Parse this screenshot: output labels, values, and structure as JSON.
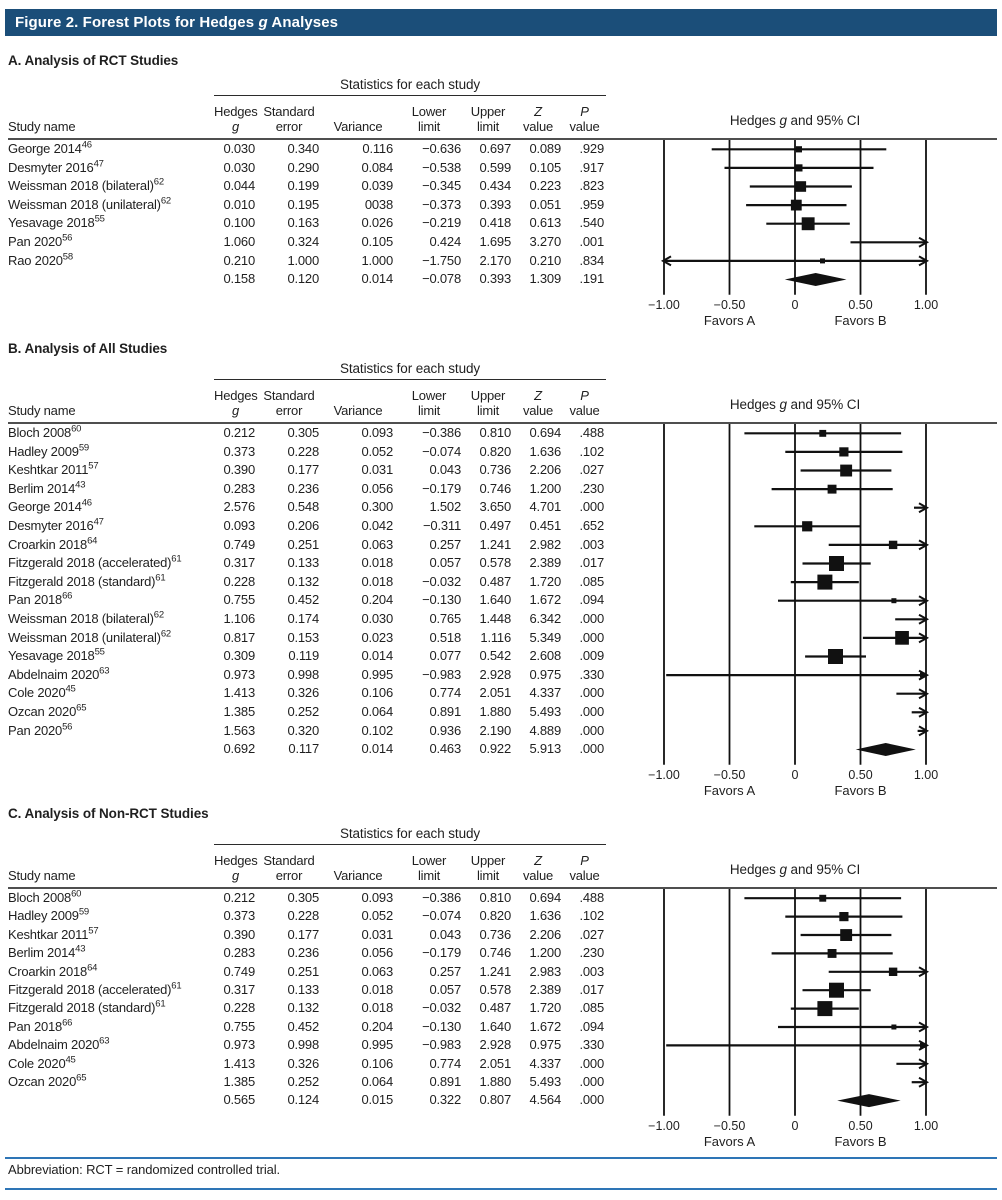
{
  "title_bar": {
    "prefix": "Figure 2. Forest Plots for Hedges ",
    "italic": "g",
    "suffix": " Analyses"
  },
  "colors": {
    "title_bar_bg": "#1b4e79",
    "rule_blue": "#2e75b6",
    "header_rule": "#4f4f4f",
    "ink": "#111111"
  },
  "table_labels": {
    "stats_header": "Statistics for each study",
    "study_col": "Study name"
  },
  "columns": [
    {
      "line1": "Hedges",
      "line2": "g",
      "italic_line": 2
    },
    {
      "line1": "Standard",
      "line2": "error",
      "italic_line": 0
    },
    {
      "line1": "",
      "line2": "Variance",
      "italic_line": 0
    },
    {
      "line1": "Lower",
      "line2": "limit",
      "italic_line": 0
    },
    {
      "line1": "Upper",
      "line2": "limit",
      "italic_line": 0
    },
    {
      "line1": "Z",
      "line2": "value",
      "italic_line": 1
    },
    {
      "line1": "P",
      "line2": "value",
      "italic_line": 1
    }
  ],
  "columns_order": [
    "hedges_g",
    "standard_error",
    "variance",
    "lower_limit",
    "upper_limit",
    "z_value",
    "p_value"
  ],
  "plot_labels": {
    "title_prefix": "Hedges ",
    "title_italic": "g",
    "title_suffix": " and 95% CI",
    "favors_left": "Favors A",
    "favors_right": "Favors B",
    "ticks": [
      {
        "label": "−1.00",
        "value": -1
      },
      {
        "label": "−0.50",
        "value": -0.5
      },
      {
        "label": "0",
        "value": 0
      },
      {
        "label": "0.50",
        "value": 0.5
      },
      {
        "label": "1.00",
        "value": 1
      }
    ]
  },
  "footer": {
    "abbreviation": "Abbreviation: RCT = randomized controlled trial."
  },
  "chart_data": [
    {
      "type": "forest",
      "panel_label": "A. Analysis of RCT Studies",
      "xlim": [
        -1,
        1
      ],
      "studies": [
        {
          "name": "George 2014",
          "ref": "46",
          "cols": [
            "0.030",
            "0.340",
            "0.116",
            "−0.636",
            "0.697",
            "0.089",
            ".929"
          ]
        },
        {
          "name": "Desmyter 2016",
          "ref": "47",
          "cols": [
            "0.030",
            "0.290",
            "0.084",
            "−0.538",
            "0.599",
            "0.105",
            ".917"
          ]
        },
        {
          "name": "Weissman 2018 (bilateral)",
          "ref": "62",
          "cols": [
            "0.044",
            "0.199",
            "0.039",
            "−0.345",
            "0.434",
            "0.223",
            ".823"
          ]
        },
        {
          "name": "Weissman 2018 (unilateral)",
          "ref": "62",
          "cols": [
            "0.010",
            "0.195",
            "0038",
            "−0.373",
            "0.393",
            "0.051",
            ".959"
          ]
        },
        {
          "name": "Yesavage 2018",
          "ref": "55",
          "cols": [
            "0.100",
            "0.163",
            "0.026",
            "−0.219",
            "0.418",
            "0.613",
            ".540"
          ]
        },
        {
          "name": "Pan 2020",
          "ref": "56",
          "cols": [
            "1.060",
            "0.324",
            "0.105",
            "0.424",
            "1.695",
            "3.270",
            ".001"
          ]
        },
        {
          "name": "Rao 2020",
          "ref": "58",
          "cols": [
            "0.210",
            "1.000",
            "1.000",
            "−1.750",
            "2.170",
            "0.210",
            ".834"
          ]
        }
      ],
      "summary": {
        "cols": [
          "0.158",
          "0.120",
          "0.014",
          "−0.078",
          "0.393",
          "1.309",
          ".191"
        ]
      }
    },
    {
      "type": "forest",
      "panel_label": "B. Analysis of All Studies",
      "xlim": [
        -1,
        1
      ],
      "studies": [
        {
          "name": "Bloch 2008",
          "ref": "60",
          "cols": [
            "0.212",
            "0.305",
            "0.093",
            "−0.386",
            "0.810",
            "0.694",
            ".488"
          ]
        },
        {
          "name": "Hadley 2009",
          "ref": "59",
          "cols": [
            "0.373",
            "0.228",
            "0.052",
            "−0.074",
            "0.820",
            "1.636",
            ".102"
          ]
        },
        {
          "name": "Keshtkar 2011",
          "ref": "57",
          "cols": [
            "0.390",
            "0.177",
            "0.031",
            "0.043",
            "0.736",
            "2.206",
            ".027"
          ]
        },
        {
          "name": "Berlim 2014",
          "ref": "43",
          "cols": [
            "0.283",
            "0.236",
            "0.056",
            "−0.179",
            "0.746",
            "1.200",
            ".230"
          ]
        },
        {
          "name": "George 2014",
          "ref": "46",
          "cols": [
            "2.576",
            "0.548",
            "0.300",
            "1.502",
            "3.650",
            "4.701",
            ".000"
          ]
        },
        {
          "name": "Desmyter 2016",
          "ref": "47",
          "cols": [
            "0.093",
            "0.206",
            "0.042",
            "−0.311",
            "0.497",
            "0.451",
            ".652"
          ]
        },
        {
          "name": "Croarkin 2018",
          "ref": "64",
          "cols": [
            "0.749",
            "0.251",
            "0.063",
            "0.257",
            "1.241",
            "2.982",
            ".003"
          ]
        },
        {
          "name": "Fitzgerald 2018 (accelerated)",
          "ref": "61",
          "cols": [
            "0.317",
            "0.133",
            "0.018",
            "0.057",
            "0.578",
            "2.389",
            ".017"
          ]
        },
        {
          "name": "Fitzgerald 2018 (standard)",
          "ref": "61",
          "cols": [
            "0.228",
            "0.132",
            "0.018",
            "−0.032",
            "0.487",
            "1.720",
            ".085"
          ]
        },
        {
          "name": "Pan 2018",
          "ref": "66",
          "cols": [
            "0.755",
            "0.452",
            "0.204",
            "−0.130",
            "1.640",
            "1.672",
            ".094"
          ]
        },
        {
          "name": "Weissman 2018 (bilateral)",
          "ref": "62",
          "cols": [
            "1.106",
            "0.174",
            "0.030",
            "0.765",
            "1.448",
            "6.342",
            ".000"
          ]
        },
        {
          "name": "Weissman 2018 (unilateral)",
          "ref": "62",
          "cols": [
            "0.817",
            "0.153",
            "0.023",
            "0.518",
            "1.116",
            "5.349",
            ".000"
          ]
        },
        {
          "name": "Yesavage 2018",
          "ref": "55",
          "cols": [
            "0.309",
            "0.119",
            "0.014",
            "0.077",
            "0.542",
            "2.608",
            ".009"
          ]
        },
        {
          "name": "Abdelnaim 2020",
          "ref": "63",
          "cols": [
            "0.973",
            "0.998",
            "0.995",
            "−0.983",
            "2.928",
            "0.975",
            ".330"
          ]
        },
        {
          "name": "Cole 2020",
          "ref": "45",
          "cols": [
            "1.413",
            "0.326",
            "0.106",
            "0.774",
            "2.051",
            "4.337",
            ".000"
          ]
        },
        {
          "name": "Ozcan 2020",
          "ref": "65",
          "cols": [
            "1.385",
            "0.252",
            "0.064",
            "0.891",
            "1.880",
            "5.493",
            ".000"
          ]
        },
        {
          "name": "Pan 2020",
          "ref": "56",
          "cols": [
            "1.563",
            "0.320",
            "0.102",
            "0.936",
            "2.190",
            "4.889",
            ".000"
          ]
        }
      ],
      "summary": {
        "cols": [
          "0.692",
          "0.117",
          "0.014",
          "0.463",
          "0.922",
          "5.913",
          ".000"
        ]
      }
    },
    {
      "type": "forest",
      "panel_label": "C. Analysis of Non-RCT Studies",
      "xlim": [
        -1,
        1
      ],
      "studies": [
        {
          "name": "Bloch 2008",
          "ref": "60",
          "cols": [
            "0.212",
            "0.305",
            "0.093",
            "−0.386",
            "0.810",
            "0.694",
            ".488"
          ]
        },
        {
          "name": "Hadley 2009",
          "ref": "59",
          "cols": [
            "0.373",
            "0.228",
            "0.052",
            "−0.074",
            "0.820",
            "1.636",
            ".102"
          ]
        },
        {
          "name": "Keshtkar 2011",
          "ref": "57",
          "cols": [
            "0.390",
            "0.177",
            "0.031",
            "0.043",
            "0.736",
            "2.206",
            ".027"
          ]
        },
        {
          "name": "Berlim 2014",
          "ref": "43",
          "cols": [
            "0.283",
            "0.236",
            "0.056",
            "−0.179",
            "0.746",
            "1.200",
            ".230"
          ]
        },
        {
          "name": "Croarkin 2018",
          "ref": "64",
          "cols": [
            "0.749",
            "0.251",
            "0.063",
            "0.257",
            "1.241",
            "2.983",
            ".003"
          ]
        },
        {
          "name": "Fitzgerald 2018 (accelerated)",
          "ref": "61",
          "cols": [
            "0.317",
            "0.133",
            "0.018",
            "0.057",
            "0.578",
            "2.389",
            ".017"
          ]
        },
        {
          "name": "Fitzgerald 2018 (standard)",
          "ref": "61",
          "cols": [
            "0.228",
            "0.132",
            "0.018",
            "−0.032",
            "0.487",
            "1.720",
            ".085"
          ]
        },
        {
          "name": "Pan 2018",
          "ref": "66",
          "cols": [
            "0.755",
            "0.452",
            "0.204",
            "−0.130",
            "1.640",
            "1.672",
            ".094"
          ]
        },
        {
          "name": "Abdelnaim 2020",
          "ref": "63",
          "cols": [
            "0.973",
            "0.998",
            "0.995",
            "−0.983",
            "2.928",
            "0.975",
            ".330"
          ]
        },
        {
          "name": "Cole 2020",
          "ref": "45",
          "cols": [
            "1.413",
            "0.326",
            "0.106",
            "0.774",
            "2.051",
            "4.337",
            ".000"
          ]
        },
        {
          "name": "Ozcan 2020",
          "ref": "65",
          "cols": [
            "1.385",
            "0.252",
            "0.064",
            "0.891",
            "1.880",
            "5.493",
            ".000"
          ]
        }
      ],
      "summary": {
        "cols": [
          "0.565",
          "0.124",
          "0.015",
          "0.322",
          "0.807",
          "4.564",
          ".000"
        ]
      }
    }
  ]
}
